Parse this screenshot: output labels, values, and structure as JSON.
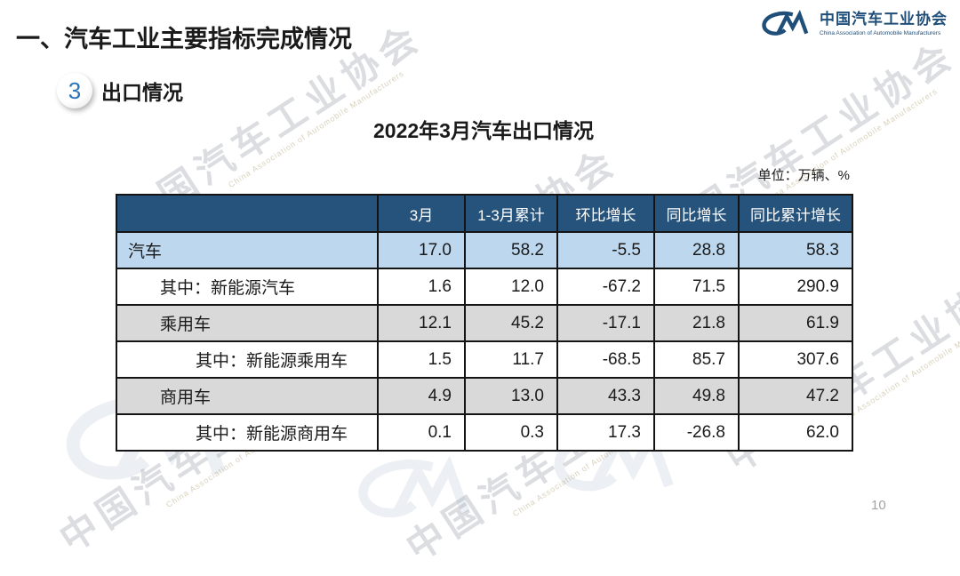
{
  "slide": {
    "title": "一、汽车工业主要指标完成情况",
    "section_number": "3",
    "section_title": "出口情况",
    "page_number": "10"
  },
  "logo": {
    "name_cn": "中国汽车工业协会",
    "name_en": "China Association of Automobile Manufacturers"
  },
  "watermark": {
    "text_cn": "中国汽车工业协会",
    "text_en": "China Association of Automobile Manufacturers"
  },
  "table": {
    "title": "2022年3月汽车出口情况",
    "unit_note": "单位：万辆、%",
    "columns": [
      "",
      "3月",
      "1-3月累计",
      "环比增长",
      "同比增长",
      "同比累计增长"
    ],
    "rows": [
      {
        "label": "汽车",
        "indent": 0,
        "style": "blue",
        "values": [
          "17.0",
          "58.2",
          "-5.5",
          "28.8",
          "58.3"
        ]
      },
      {
        "label": "其中：新能源汽车",
        "indent": 1,
        "style": "white",
        "values": [
          "1.6",
          "12.0",
          "-67.2",
          "71.5",
          "290.9"
        ]
      },
      {
        "label": "乘用车",
        "indent": 1,
        "style": "gray",
        "values": [
          "12.1",
          "45.2",
          "-17.1",
          "21.8",
          "61.9"
        ]
      },
      {
        "label": "其中：新能源乘用车",
        "indent": 2,
        "style": "white",
        "values": [
          "1.5",
          "11.7",
          "-68.5",
          "85.7",
          "307.6"
        ]
      },
      {
        "label": "商用车",
        "indent": 1,
        "style": "gray",
        "values": [
          "4.9",
          "13.0",
          "43.3",
          "49.8",
          "47.2"
        ]
      },
      {
        "label": "其中：新能源商用车",
        "indent": 2,
        "style": "white",
        "values": [
          "0.1",
          "0.3",
          "17.3",
          "-26.8",
          "62.0"
        ]
      }
    ]
  },
  "chart_data": {
    "type": "table",
    "title": "2022年3月汽车出口情况",
    "unit": "万辆、%",
    "columns": [
      "3月",
      "1-3月累计",
      "环比增长",
      "同比增长",
      "同比累计增长"
    ],
    "rows": [
      {
        "name": "汽车",
        "values": [
          17.0,
          58.2,
          -5.5,
          28.8,
          58.3
        ]
      },
      {
        "name": "其中：新能源汽车",
        "values": [
          1.6,
          12.0,
          -67.2,
          71.5,
          290.9
        ]
      },
      {
        "name": "乘用车",
        "values": [
          12.1,
          45.2,
          -17.1,
          21.8,
          61.9
        ]
      },
      {
        "name": "其中：新能源乘用车",
        "values": [
          1.5,
          11.7,
          -68.5,
          85.7,
          307.6
        ]
      },
      {
        "name": "商用车",
        "values": [
          4.9,
          13.0,
          43.3,
          49.8,
          47.2
        ]
      },
      {
        "name": "其中：新能源商用车",
        "values": [
          0.1,
          0.3,
          17.3,
          -26.8,
          62.0
        ]
      }
    ]
  },
  "colors": {
    "header_bg": "#25537C",
    "row_highlight_blue": "#BDD7EE",
    "row_gray": "#D9D9D9",
    "brand_navy": "#1F4E79",
    "badge_number_blue": "#2E74B5",
    "page_number_gray": "#A3A3A3"
  }
}
